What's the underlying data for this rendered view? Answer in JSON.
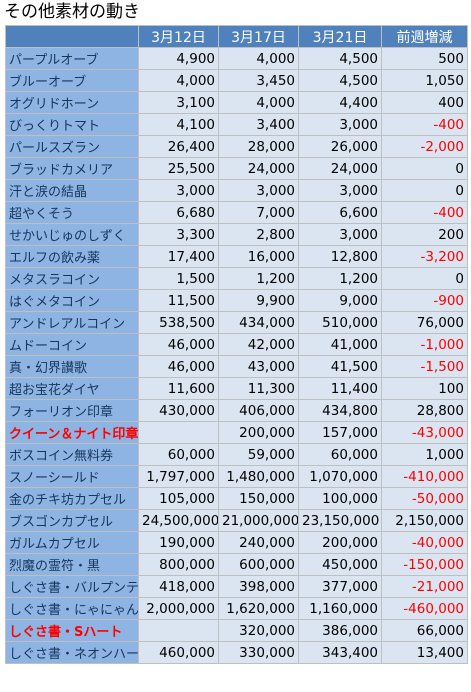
{
  "title": "その他素材の動き",
  "table": {
    "header": [
      "3月12日",
      "3月17日",
      "3月21日",
      "前週増減"
    ],
    "negative_color": "#ff0000",
    "rows": [
      {
        "name": "パープルオーブ",
        "cells": [
          "4,900",
          "4,000",
          "4,500",
          "500"
        ]
      },
      {
        "name": "ブルーオーブ",
        "cells": [
          "4,000",
          "3,450",
          "4,500",
          "1,050"
        ]
      },
      {
        "name": "オグリドホーン",
        "cells": [
          "3,100",
          "4,000",
          "4,400",
          "400"
        ]
      },
      {
        "name": "びっくりトマト",
        "cells": [
          "4,100",
          "3,400",
          "3,000",
          "-400"
        ]
      },
      {
        "name": "パールスズラン",
        "cells": [
          "26,400",
          "28,000",
          "26,000",
          "-2,000"
        ]
      },
      {
        "name": "ブラッドカメリア",
        "cells": [
          "25,500",
          "24,000",
          "24,000",
          "0"
        ]
      },
      {
        "name": "汗と涙の結晶",
        "cells": [
          "3,000",
          "3,000",
          "3,000",
          "0"
        ]
      },
      {
        "name": "超やくそう",
        "cells": [
          "6,680",
          "7,000",
          "6,600",
          "-400"
        ]
      },
      {
        "name": "せかいじゅのしずく",
        "cells": [
          "3,300",
          "2,800",
          "3,000",
          "200"
        ]
      },
      {
        "name": "エルフの飲み薬",
        "cells": [
          "17,400",
          "16,000",
          "12,800",
          "-3,200"
        ]
      },
      {
        "name": "メタスラコイン",
        "cells": [
          "1,500",
          "1,200",
          "1,200",
          "0"
        ]
      },
      {
        "name": "はぐメタコイン",
        "cells": [
          "11,500",
          "9,900",
          "9,000",
          "-900"
        ]
      },
      {
        "name": "アンドレアルコイン",
        "cells": [
          "538,500",
          "434,000",
          "510,000",
          "76,000"
        ]
      },
      {
        "name": "ムドーコイン",
        "cells": [
          "46,000",
          "42,000",
          "41,000",
          "-1,000"
        ]
      },
      {
        "name": "真・幻界讃歌",
        "cells": [
          "46,000",
          "43,000",
          "41,500",
          "-1,500"
        ]
      },
      {
        "name": "超お宝花ダイヤ",
        "cells": [
          "11,600",
          "11,300",
          "11,400",
          "100"
        ]
      },
      {
        "name": "フォーリオン印章",
        "cells": [
          "430,000",
          "406,000",
          "434,800",
          "28,800"
        ]
      },
      {
        "name": "クイーン＆ナイト印章",
        "color": "#ff0000",
        "cells": [
          null,
          "200,000",
          "157,000",
          "-43,000"
        ]
      },
      {
        "name": "ボスコイン無料券",
        "cells": [
          "60,000",
          "59,000",
          "60,000",
          "1,000"
        ]
      },
      {
        "name": "スノーシールド",
        "cells": [
          "1,797,000",
          "1,480,000",
          "1,070,000",
          "-410,000"
        ]
      },
      {
        "name": "金のチキ坊カプセル",
        "cells": [
          "105,000",
          "150,000",
          "100,000",
          "-50,000"
        ]
      },
      {
        "name": "ブスゴンカプセル",
        "cells": [
          "24,500,000",
          "21,000,000",
          "23,150,000",
          "2,150,000"
        ]
      },
      {
        "name": "ガルムカプセル",
        "cells": [
          "190,000",
          "240,000",
          "200,000",
          "-40,000"
        ]
      },
      {
        "name": "烈魔の霊符・黒",
        "cells": [
          "800,000",
          "600,000",
          "450,000",
          "-150,000"
        ]
      },
      {
        "name": "しぐさ書・バルプンテ",
        "cells": [
          "418,000",
          "398,000",
          "377,000",
          "-21,000"
        ]
      },
      {
        "name": "しぐさ書・にゃにゃん",
        "cells": [
          "2,000,000",
          "1,620,000",
          "1,160,000",
          "-460,000"
        ]
      },
      {
        "name": "しぐさ書・Sハート",
        "color": "#ff0000",
        "cells": [
          null,
          "320,000",
          "386,000",
          "66,000"
        ]
      },
      {
        "name": "しぐさ書・ネオンハート",
        "cells": [
          "460,000",
          "330,000",
          "343,400",
          "13,400"
        ]
      }
    ]
  }
}
